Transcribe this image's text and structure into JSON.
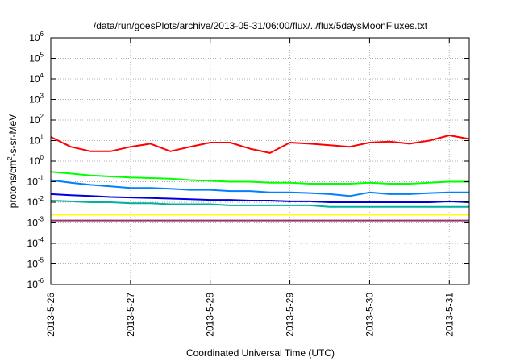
{
  "chart_data": {
    "type": "line",
    "title": "/data/run/goesPlots/archive/2013-05-31/06:00/flux/../flux/5daysMoonFluxes.txt",
    "xlabel": "Coordinated Universal Time (UTC)",
    "ylabel": "protons/cm²-s-sr-MeV",
    "ylabel_parts": {
      "pre": "protons/cm",
      "sup": "2",
      "post": "-s-sr-MeV"
    },
    "y_scale": "log",
    "ylim": [
      1e-06,
      1000000.0
    ],
    "y_ticks": [
      {
        "exp": "-6",
        "value": 1e-06
      },
      {
        "exp": "-5",
        "value": 1e-05
      },
      {
        "exp": "-4",
        "value": 0.0001
      },
      {
        "exp": "-3",
        "value": 0.001
      },
      {
        "exp": "-2",
        "value": 0.01
      },
      {
        "exp": "-1",
        "value": 0.1
      },
      {
        "exp": "0",
        "value": 1
      },
      {
        "exp": "1",
        "value": 10
      },
      {
        "exp": "2",
        "value": 100
      },
      {
        "exp": "3",
        "value": 1000
      },
      {
        "exp": "4",
        "value": 10000
      },
      {
        "exp": "5",
        "value": 100000
      },
      {
        "exp": "6",
        "value": 1000000
      }
    ],
    "y_tick_base": "10",
    "xlim": [
      "2013-05-26T00:00",
      "2013-05-31T06:00"
    ],
    "x_ticks": [
      "2013-5-26",
      "2013-5-27",
      "2013-5-28",
      "2013-5-29",
      "2013-5-30",
      "2013-5-31"
    ],
    "grid": true,
    "x": [
      "2013-05-26T00:00",
      "2013-05-26T06:00",
      "2013-05-26T12:00",
      "2013-05-26T18:00",
      "2013-05-27T00:00",
      "2013-05-27T06:00",
      "2013-05-27T12:00",
      "2013-05-27T18:00",
      "2013-05-28T00:00",
      "2013-05-28T06:00",
      "2013-05-28T12:00",
      "2013-05-28T18:00",
      "2013-05-29T00:00",
      "2013-05-29T06:00",
      "2013-05-29T12:00",
      "2013-05-29T18:00",
      "2013-05-30T00:00",
      "2013-05-30T06:00",
      "2013-05-30T12:00",
      "2013-05-30T18:00",
      "2013-05-31T00:00",
      "2013-05-31T06:00"
    ],
    "series": [
      {
        "color": "#ff0000",
        "values": [
          15,
          5,
          3,
          3,
          5,
          7,
          3,
          5,
          8,
          8,
          4,
          2.5,
          8,
          7,
          6,
          5,
          8,
          9,
          7,
          10,
          18,
          12
        ]
      },
      {
        "color": "#00ff00",
        "values": [
          0.3,
          0.25,
          0.2,
          0.18,
          0.16,
          0.15,
          0.14,
          0.12,
          0.11,
          0.1,
          0.1,
          0.09,
          0.09,
          0.08,
          0.08,
          0.08,
          0.09,
          0.08,
          0.08,
          0.09,
          0.1,
          0.1
        ]
      },
      {
        "color": "#0080ff",
        "values": [
          0.12,
          0.09,
          0.07,
          0.06,
          0.05,
          0.05,
          0.045,
          0.04,
          0.04,
          0.035,
          0.035,
          0.03,
          0.03,
          0.028,
          0.025,
          0.02,
          0.03,
          0.025,
          0.025,
          0.028,
          0.03,
          0.03
        ]
      },
      {
        "color": "#0000dd",
        "values": [
          0.025,
          0.022,
          0.02,
          0.018,
          0.017,
          0.016,
          0.015,
          0.014,
          0.013,
          0.013,
          0.012,
          0.012,
          0.011,
          0.011,
          0.01,
          0.01,
          0.01,
          0.01,
          0.01,
          0.01,
          0.011,
          0.01
        ]
      },
      {
        "color": "#00b0a0",
        "values": [
          0.012,
          0.011,
          0.01,
          0.01,
          0.009,
          0.009,
          0.008,
          0.008,
          0.008,
          0.007,
          0.007,
          0.007,
          0.007,
          0.007,
          0.006,
          0.006,
          0.006,
          0.006,
          0.006,
          0.006,
          0.006,
          0.006
        ]
      },
      {
        "color": "#ffff00",
        "values": [
          0.0025,
          0.0025,
          0.0025,
          0.0025,
          0.0025,
          0.0025,
          0.0025,
          0.0025,
          0.0025,
          0.0025,
          0.0025,
          0.0025,
          0.0025,
          0.0025,
          0.0025,
          0.0025,
          0.0025,
          0.0025,
          0.0025,
          0.0025,
          0.0025,
          0.0025
        ]
      },
      {
        "color": "#993366",
        "values": [
          0.0013,
          0.0013,
          0.0013,
          0.0013,
          0.0013,
          0.0013,
          0.0013,
          0.0013,
          0.0013,
          0.0013,
          0.0013,
          0.0013,
          0.0013,
          0.0013,
          0.0013,
          0.0013,
          0.0013,
          0.0013,
          0.0013,
          0.0013,
          0.0013,
          0.0013
        ]
      }
    ]
  }
}
